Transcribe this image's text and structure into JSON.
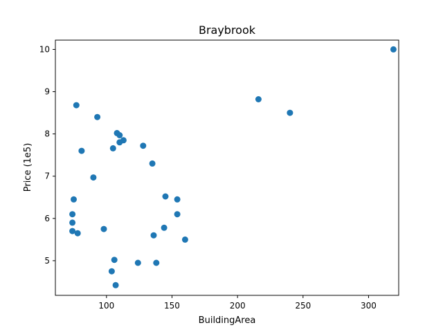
{
  "chart_data": {
    "type": "scatter",
    "title": "Braybrook",
    "xlabel": "BuildingArea",
    "ylabel": "Price (1e5)",
    "xlim": [
      61,
      323
    ],
    "ylim": [
      4.18,
      10.22
    ],
    "xticks": [
      100,
      150,
      200,
      250,
      300
    ],
    "xtick_labels": [
      "100",
      "150",
      "200",
      "250",
      "300"
    ],
    "yticks": [
      5,
      6,
      7,
      8,
      9,
      10
    ],
    "ytick_labels": [
      "5",
      "6",
      "7",
      "8",
      "9",
      "10"
    ],
    "grid": false,
    "marker_color": "#1f77b4",
    "points": [
      {
        "x": 319,
        "y": 10.0
      },
      {
        "x": 216,
        "y": 8.82
      },
      {
        "x": 240,
        "y": 8.5
      },
      {
        "x": 77,
        "y": 8.68
      },
      {
        "x": 93,
        "y": 8.4
      },
      {
        "x": 108,
        "y": 8.02
      },
      {
        "x": 110,
        "y": 7.97
      },
      {
        "x": 113,
        "y": 7.85
      },
      {
        "x": 110,
        "y": 7.8
      },
      {
        "x": 128,
        "y": 7.72
      },
      {
        "x": 105,
        "y": 7.66
      },
      {
        "x": 81,
        "y": 7.6
      },
      {
        "x": 135,
        "y": 7.3
      },
      {
        "x": 90,
        "y": 6.97
      },
      {
        "x": 75,
        "y": 6.45
      },
      {
        "x": 145,
        "y": 6.52
      },
      {
        "x": 154,
        "y": 6.45
      },
      {
        "x": 74,
        "y": 6.1
      },
      {
        "x": 154,
        "y": 6.1
      },
      {
        "x": 74,
        "y": 5.9
      },
      {
        "x": 144,
        "y": 5.78
      },
      {
        "x": 98,
        "y": 5.75
      },
      {
        "x": 74,
        "y": 5.7
      },
      {
        "x": 78,
        "y": 5.65
      },
      {
        "x": 136,
        "y": 5.6
      },
      {
        "x": 160,
        "y": 5.5
      },
      {
        "x": 106,
        "y": 5.02
      },
      {
        "x": 124,
        "y": 4.95
      },
      {
        "x": 138,
        "y": 4.95
      },
      {
        "x": 104,
        "y": 4.75
      },
      {
        "x": 107,
        "y": 4.42
      }
    ]
  }
}
